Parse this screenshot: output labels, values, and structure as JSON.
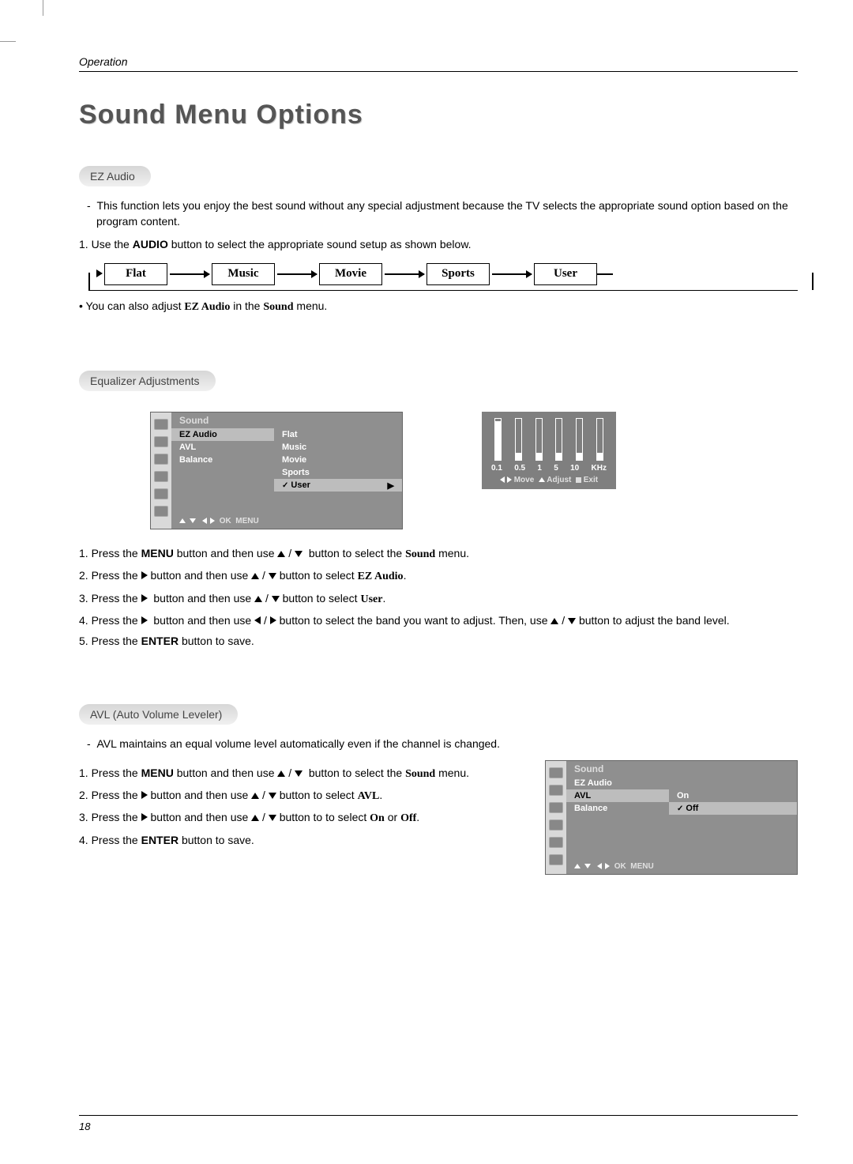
{
  "header": {
    "section": "Operation"
  },
  "title": "Sound Menu Options",
  "page_number": "18",
  "ez": {
    "pill": "EZ Audio",
    "desc_dash": "-",
    "desc": "This function lets you enjoy the best sound without any special adjustment because the TV selects the appropriate sound option based on the program content.",
    "step1_num": "1.",
    "step1_a": "Use the ",
    "step1_b": "AUDIO",
    "step1_c": " button to select the appropriate sound setup as shown below.",
    "flow": [
      "Flat",
      "Music",
      "Movie",
      "Sports",
      "User"
    ],
    "note_bullet": "•",
    "note_a": "You can also adjust ",
    "note_b": "EZ Audio",
    "note_c": " in the ",
    "note_d": "Sound",
    "note_e": " menu."
  },
  "eq": {
    "pill": "Equalizer Adjustments",
    "osd": {
      "title": "Sound",
      "items_left": [
        "EZ Audio",
        "AVL",
        "Balance"
      ],
      "items_right": [
        "Flat",
        "Music",
        "Movie",
        "Sports",
        "User"
      ],
      "selected_right": "User",
      "check": "✓",
      "footer_ok": "OK",
      "footer_menu": "MENU"
    },
    "eq_panel": {
      "bar_heights_pct": [
        95,
        18,
        18,
        18,
        18,
        18
      ],
      "labels": [
        "0.1",
        "0.5",
        "1",
        "5",
        "10",
        "KHz"
      ],
      "footer_move": "Move",
      "footer_adjust": "Adjust",
      "footer_exit": "Exit"
    },
    "steps": {
      "s1_num": "1.",
      "s1_a": "Press the ",
      "s1_b": "MENU",
      "s1_c": " button and then use ",
      "s1_d": " button to select the ",
      "s1_e": "Sound",
      "s1_f": " menu.",
      "s2_num": "2.",
      "s2_a": "Press the ",
      "s2_b": " button and then use ",
      "s2_c": " button to select ",
      "s2_d": "EZ Audio",
      "s2_e": ".",
      "s3_num": "3.",
      "s3_a": "Press the ",
      "s3_b": " button and then use ",
      "s3_c": " button to select ",
      "s3_d": "User",
      "s3_e": ".",
      "s4_num": "4.",
      "s4_a": "Press the ",
      "s4_b": " button and then use ",
      "s4_c": " button to select the band you want to adjust. Then, use ",
      "s4_d": " button to adjust the band level.",
      "s5_num": "5.",
      "s5_a": "Press the ",
      "s5_b": "ENTER",
      "s5_c": " button to save."
    }
  },
  "avl": {
    "pill": "AVL (Auto Volume Leveler)",
    "desc_dash": "-",
    "desc": "AVL maintains an equal volume level automatically even if the channel is changed.",
    "steps": {
      "s1_num": "1.",
      "s1_a": "Press the ",
      "s1_b": "MENU",
      "s1_c": " button and then use ",
      "s1_d": " button to select the ",
      "s1_e": "Sound",
      "s1_f": " menu.",
      "s2_num": "2.",
      "s2_a": "Press the ",
      "s2_b": " button and then use ",
      "s2_c": " button to select ",
      "s2_d": "AVL",
      "s2_e": ".",
      "s3_num": "3.",
      "s3_a": "Press the ",
      "s3_b": " button and then use ",
      "s3_c": " button to to select ",
      "s3_d": "On",
      "s3_e": " or ",
      "s3_f": "Off",
      "s3_g": ".",
      "s4_num": "4.",
      "s4_a": "Press the ",
      "s4_b": "ENTER",
      "s4_c": " button to save."
    },
    "osd": {
      "title": "Sound",
      "items_left": [
        "EZ Audio",
        "AVL",
        "Balance"
      ],
      "items_right": [
        "On",
        "Off"
      ],
      "selected_left": "AVL",
      "selected_right": "Off",
      "check": "✓",
      "footer_ok": "OK",
      "footer_menu": "MENU"
    }
  },
  "colors": {
    "osd_bg": "#8f8f8f",
    "osd_hl": "#bdbdbd",
    "osd_side": "#d9d9d9",
    "eq_bg": "#7f7f7f",
    "pill_grad_top": "#d6d6d6",
    "pill_grad_bot": "#f0f0f0",
    "title_color": "#555555"
  }
}
